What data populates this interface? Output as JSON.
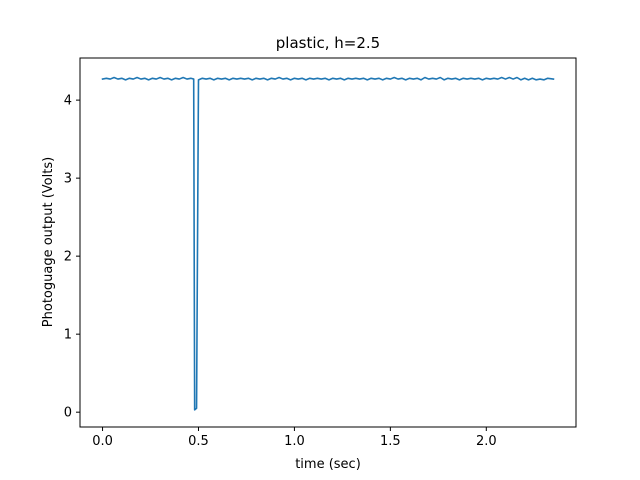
{
  "chart_data": {
    "type": "line",
    "title": "plastic, h=2.5",
    "xlabel": "time (sec)",
    "ylabel": "Photoguage output (Volts)",
    "xlim": [
      -0.1175,
      2.4675
    ],
    "ylim": [
      -0.19,
      4.54
    ],
    "xticks": [
      0.0,
      0.5,
      1.0,
      1.5,
      2.0
    ],
    "xtick_labels": [
      "0.0",
      "0.5",
      "1.0",
      "1.5",
      "2.0"
    ],
    "yticks": [
      0,
      1,
      2,
      3,
      4
    ],
    "ytick_labels": [
      "0",
      "1",
      "2",
      "3",
      "4"
    ],
    "grid": false,
    "series": [
      {
        "color": "#1f77b4",
        "points": [
          [
            0.0,
            4.27
          ],
          [
            0.02,
            4.28
          ],
          [
            0.04,
            4.27
          ],
          [
            0.06,
            4.29
          ],
          [
            0.08,
            4.27
          ],
          [
            0.1,
            4.28
          ],
          [
            0.12,
            4.26
          ],
          [
            0.14,
            4.28
          ],
          [
            0.16,
            4.27
          ],
          [
            0.18,
            4.29
          ],
          [
            0.2,
            4.27
          ],
          [
            0.22,
            4.28
          ],
          [
            0.24,
            4.26
          ],
          [
            0.26,
            4.28
          ],
          [
            0.28,
            4.27
          ],
          [
            0.3,
            4.29
          ],
          [
            0.32,
            4.27
          ],
          [
            0.34,
            4.28
          ],
          [
            0.36,
            4.26
          ],
          [
            0.38,
            4.28
          ],
          [
            0.4,
            4.27
          ],
          [
            0.42,
            4.29
          ],
          [
            0.44,
            4.27
          ],
          [
            0.46,
            4.28
          ],
          [
            0.475,
            4.27
          ],
          [
            0.48,
            0.03
          ],
          [
            0.49,
            0.05
          ],
          [
            0.5,
            4.26
          ],
          [
            0.52,
            4.28
          ],
          [
            0.54,
            4.27
          ],
          [
            0.56,
            4.28
          ],
          [
            0.58,
            4.26
          ],
          [
            0.6,
            4.28
          ],
          [
            0.62,
            4.27
          ],
          [
            0.64,
            4.28
          ],
          [
            0.66,
            4.26
          ],
          [
            0.68,
            4.28
          ],
          [
            0.7,
            4.27
          ],
          [
            0.72,
            4.28
          ],
          [
            0.74,
            4.27
          ],
          [
            0.76,
            4.28
          ],
          [
            0.78,
            4.26
          ],
          [
            0.8,
            4.28
          ],
          [
            0.82,
            4.27
          ],
          [
            0.84,
            4.28
          ],
          [
            0.86,
            4.26
          ],
          [
            0.88,
            4.28
          ],
          [
            0.9,
            4.27
          ],
          [
            0.92,
            4.29
          ],
          [
            0.94,
            4.27
          ],
          [
            0.96,
            4.28
          ],
          [
            0.98,
            4.26
          ],
          [
            1.0,
            4.28
          ],
          [
            1.02,
            4.27
          ],
          [
            1.04,
            4.28
          ],
          [
            1.06,
            4.26
          ],
          [
            1.08,
            4.28
          ],
          [
            1.1,
            4.27
          ],
          [
            1.12,
            4.28
          ],
          [
            1.14,
            4.27
          ],
          [
            1.16,
            4.28
          ],
          [
            1.18,
            4.26
          ],
          [
            1.2,
            4.28
          ],
          [
            1.22,
            4.27
          ],
          [
            1.24,
            4.28
          ],
          [
            1.26,
            4.26
          ],
          [
            1.28,
            4.28
          ],
          [
            1.3,
            4.27
          ],
          [
            1.32,
            4.28
          ],
          [
            1.34,
            4.27
          ],
          [
            1.36,
            4.28
          ],
          [
            1.38,
            4.26
          ],
          [
            1.4,
            4.28
          ],
          [
            1.42,
            4.27
          ],
          [
            1.44,
            4.28
          ],
          [
            1.46,
            4.26
          ],
          [
            1.48,
            4.28
          ],
          [
            1.5,
            4.27
          ],
          [
            1.52,
            4.29
          ],
          [
            1.54,
            4.27
          ],
          [
            1.56,
            4.28
          ],
          [
            1.58,
            4.26
          ],
          [
            1.6,
            4.28
          ],
          [
            1.62,
            4.27
          ],
          [
            1.64,
            4.28
          ],
          [
            1.66,
            4.26
          ],
          [
            1.68,
            4.29
          ],
          [
            1.7,
            4.27
          ],
          [
            1.72,
            4.28
          ],
          [
            1.74,
            4.27
          ],
          [
            1.76,
            4.29
          ],
          [
            1.78,
            4.26
          ],
          [
            1.8,
            4.28
          ],
          [
            1.82,
            4.27
          ],
          [
            1.84,
            4.28
          ],
          [
            1.86,
            4.26
          ],
          [
            1.88,
            4.28
          ],
          [
            1.9,
            4.27
          ],
          [
            1.92,
            4.28
          ],
          [
            1.94,
            4.27
          ],
          [
            1.96,
            4.28
          ],
          [
            1.98,
            4.26
          ],
          [
            2.0,
            4.28
          ],
          [
            2.02,
            4.27
          ],
          [
            2.04,
            4.28
          ],
          [
            2.06,
            4.27
          ],
          [
            2.08,
            4.29
          ],
          [
            2.1,
            4.27
          ],
          [
            2.12,
            4.29
          ],
          [
            2.14,
            4.27
          ],
          [
            2.16,
            4.29
          ],
          [
            2.18,
            4.26
          ],
          [
            2.2,
            4.28
          ],
          [
            2.22,
            4.26
          ],
          [
            2.24,
            4.28
          ],
          [
            2.26,
            4.26
          ],
          [
            2.28,
            4.27
          ],
          [
            2.3,
            4.26
          ],
          [
            2.32,
            4.28
          ],
          [
            2.35,
            4.27
          ]
        ]
      }
    ]
  }
}
